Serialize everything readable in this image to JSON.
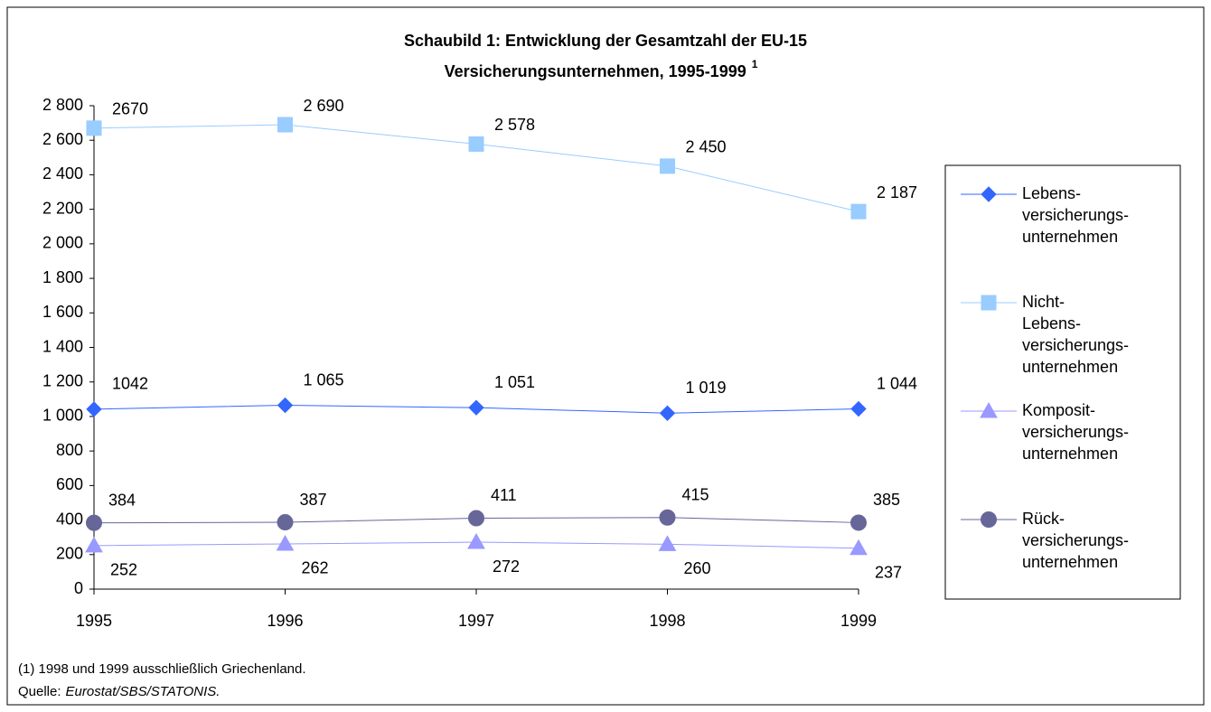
{
  "chart_data": {
    "type": "line",
    "title_lines": [
      "Schaubild 1: Entwicklung der Gesamtzahl der EU-15",
      "Versicherungsunternehmen, 1995-1999"
    ],
    "title_superscript": "1",
    "categories": [
      "1995",
      "1996",
      "1997",
      "1998",
      "1999"
    ],
    "series": [
      {
        "name": "Lebens-versicherungs-unternehmen",
        "color": "#3366ff",
        "marker": "diamond",
        "values": [
          1042,
          1065,
          1051,
          1019,
          1044
        ],
        "value_labels": [
          "1042",
          "1 065",
          "1 051",
          "1 019",
          "1 044"
        ]
      },
      {
        "name": "Nicht-Lebens-versicherungs-unternehmen",
        "color": "#99ccff",
        "marker": "square",
        "values": [
          2670,
          2690,
          2578,
          2450,
          2187
        ],
        "value_labels": [
          "2670",
          "2 690",
          "2 578",
          "2 450",
          "2 187"
        ]
      },
      {
        "name": "Komposit-versicherungs-unternehmen",
        "color": "#9999ff",
        "marker": "triangle",
        "values": [
          252,
          262,
          272,
          260,
          237
        ]
      },
      {
        "name": "Rück-versicherungs-unternehmen",
        "color": "#666699",
        "marker": "circle",
        "values": [
          384,
          387,
          411,
          415,
          385
        ]
      }
    ],
    "ylim": [
      0,
      2800
    ],
    "yticks": [
      0,
      200,
      400,
      600,
      800,
      {
        "value": 1000,
        "label": "1 000"
      },
      {
        "value": 1200,
        "label": "1 200"
      },
      {
        "value": 1400,
        "label": "1 400"
      },
      {
        "value": 1600,
        "label": "1 600"
      },
      {
        "value": 1800,
        "label": "1 800"
      },
      {
        "value": 2000,
        "label": "2 000"
      },
      {
        "value": 2200,
        "label": "2 200"
      },
      {
        "value": 2400,
        "label": "2 400"
      },
      {
        "value": 2600,
        "label": "2 600"
      },
      {
        "value": 2800,
        "label": "2 800"
      }
    ],
    "legend": "right",
    "note": "(1) 1998 und 1999 ausschließlich Griechenland.",
    "source_label": "Quelle:",
    "source": "Eurostat/SBS/STATONIS."
  }
}
